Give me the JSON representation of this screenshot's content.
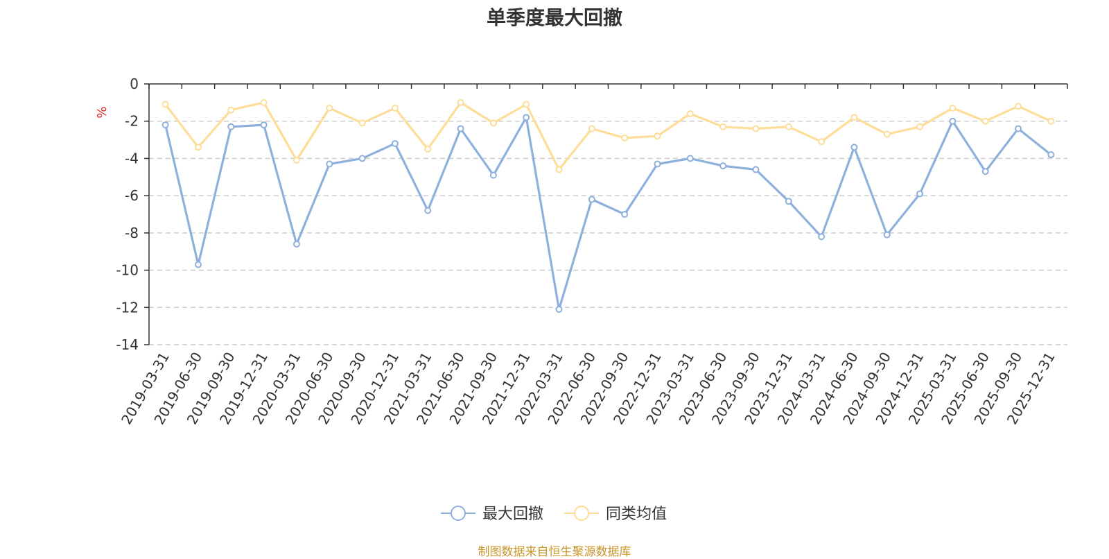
{
  "chart_data": {
    "type": "line",
    "title": "单季度最大回撤",
    "ylabel": "%",
    "ylim": [
      -14,
      0
    ],
    "yticks": [
      0,
      -2,
      -4,
      -6,
      -8,
      -10,
      -12,
      -14
    ],
    "grid": true,
    "legend_position": "bottom",
    "categories": [
      "2019-03-31",
      "2019-06-30",
      "2019-09-30",
      "2019-12-31",
      "2020-03-31",
      "2020-06-30",
      "2020-09-30",
      "2020-12-31",
      "2021-03-31",
      "2021-06-30",
      "2021-09-30",
      "2021-12-31",
      "2022-03-31",
      "2022-06-30",
      "2022-09-30",
      "2022-12-31",
      "2023-03-31",
      "2023-06-30",
      "2023-09-30",
      "2023-12-31",
      "2024-03-31",
      "2024-06-30",
      "2024-09-30",
      "2024-12-31",
      "2025-03-31",
      "2025-06-30",
      "2025-09-30",
      "2025-12-31"
    ],
    "series": [
      {
        "name": "最大回撤",
        "color": "#8eb0dc",
        "values": [
          -2.2,
          -9.7,
          -2.3,
          -2.2,
          -8.6,
          -4.3,
          -4.0,
          -3.2,
          -6.8,
          -2.4,
          -4.9,
          -1.8,
          -12.1,
          -6.2,
          -7.0,
          -4.3,
          -4.0,
          -4.4,
          -4.6,
          -6.3,
          -8.2,
          -3.4,
          -8.1,
          -5.9,
          -2.0,
          -4.7,
          -2.4,
          -3.8
        ]
      },
      {
        "name": "同类均值",
        "color": "#fddd98",
        "values": [
          -1.1,
          -3.4,
          -1.4,
          -1.0,
          -4.1,
          -1.3,
          -2.1,
          -1.3,
          -3.5,
          -1.0,
          -2.1,
          -1.1,
          -4.6,
          -2.4,
          -2.9,
          -2.8,
          -1.6,
          -2.3,
          -2.4,
          -2.3,
          -3.1,
          -1.8,
          -2.7,
          -2.3,
          -1.3,
          -2.0,
          -1.2,
          -2.0
        ]
      }
    ]
  },
  "footer": "制图数据来自恒生聚源数据库"
}
